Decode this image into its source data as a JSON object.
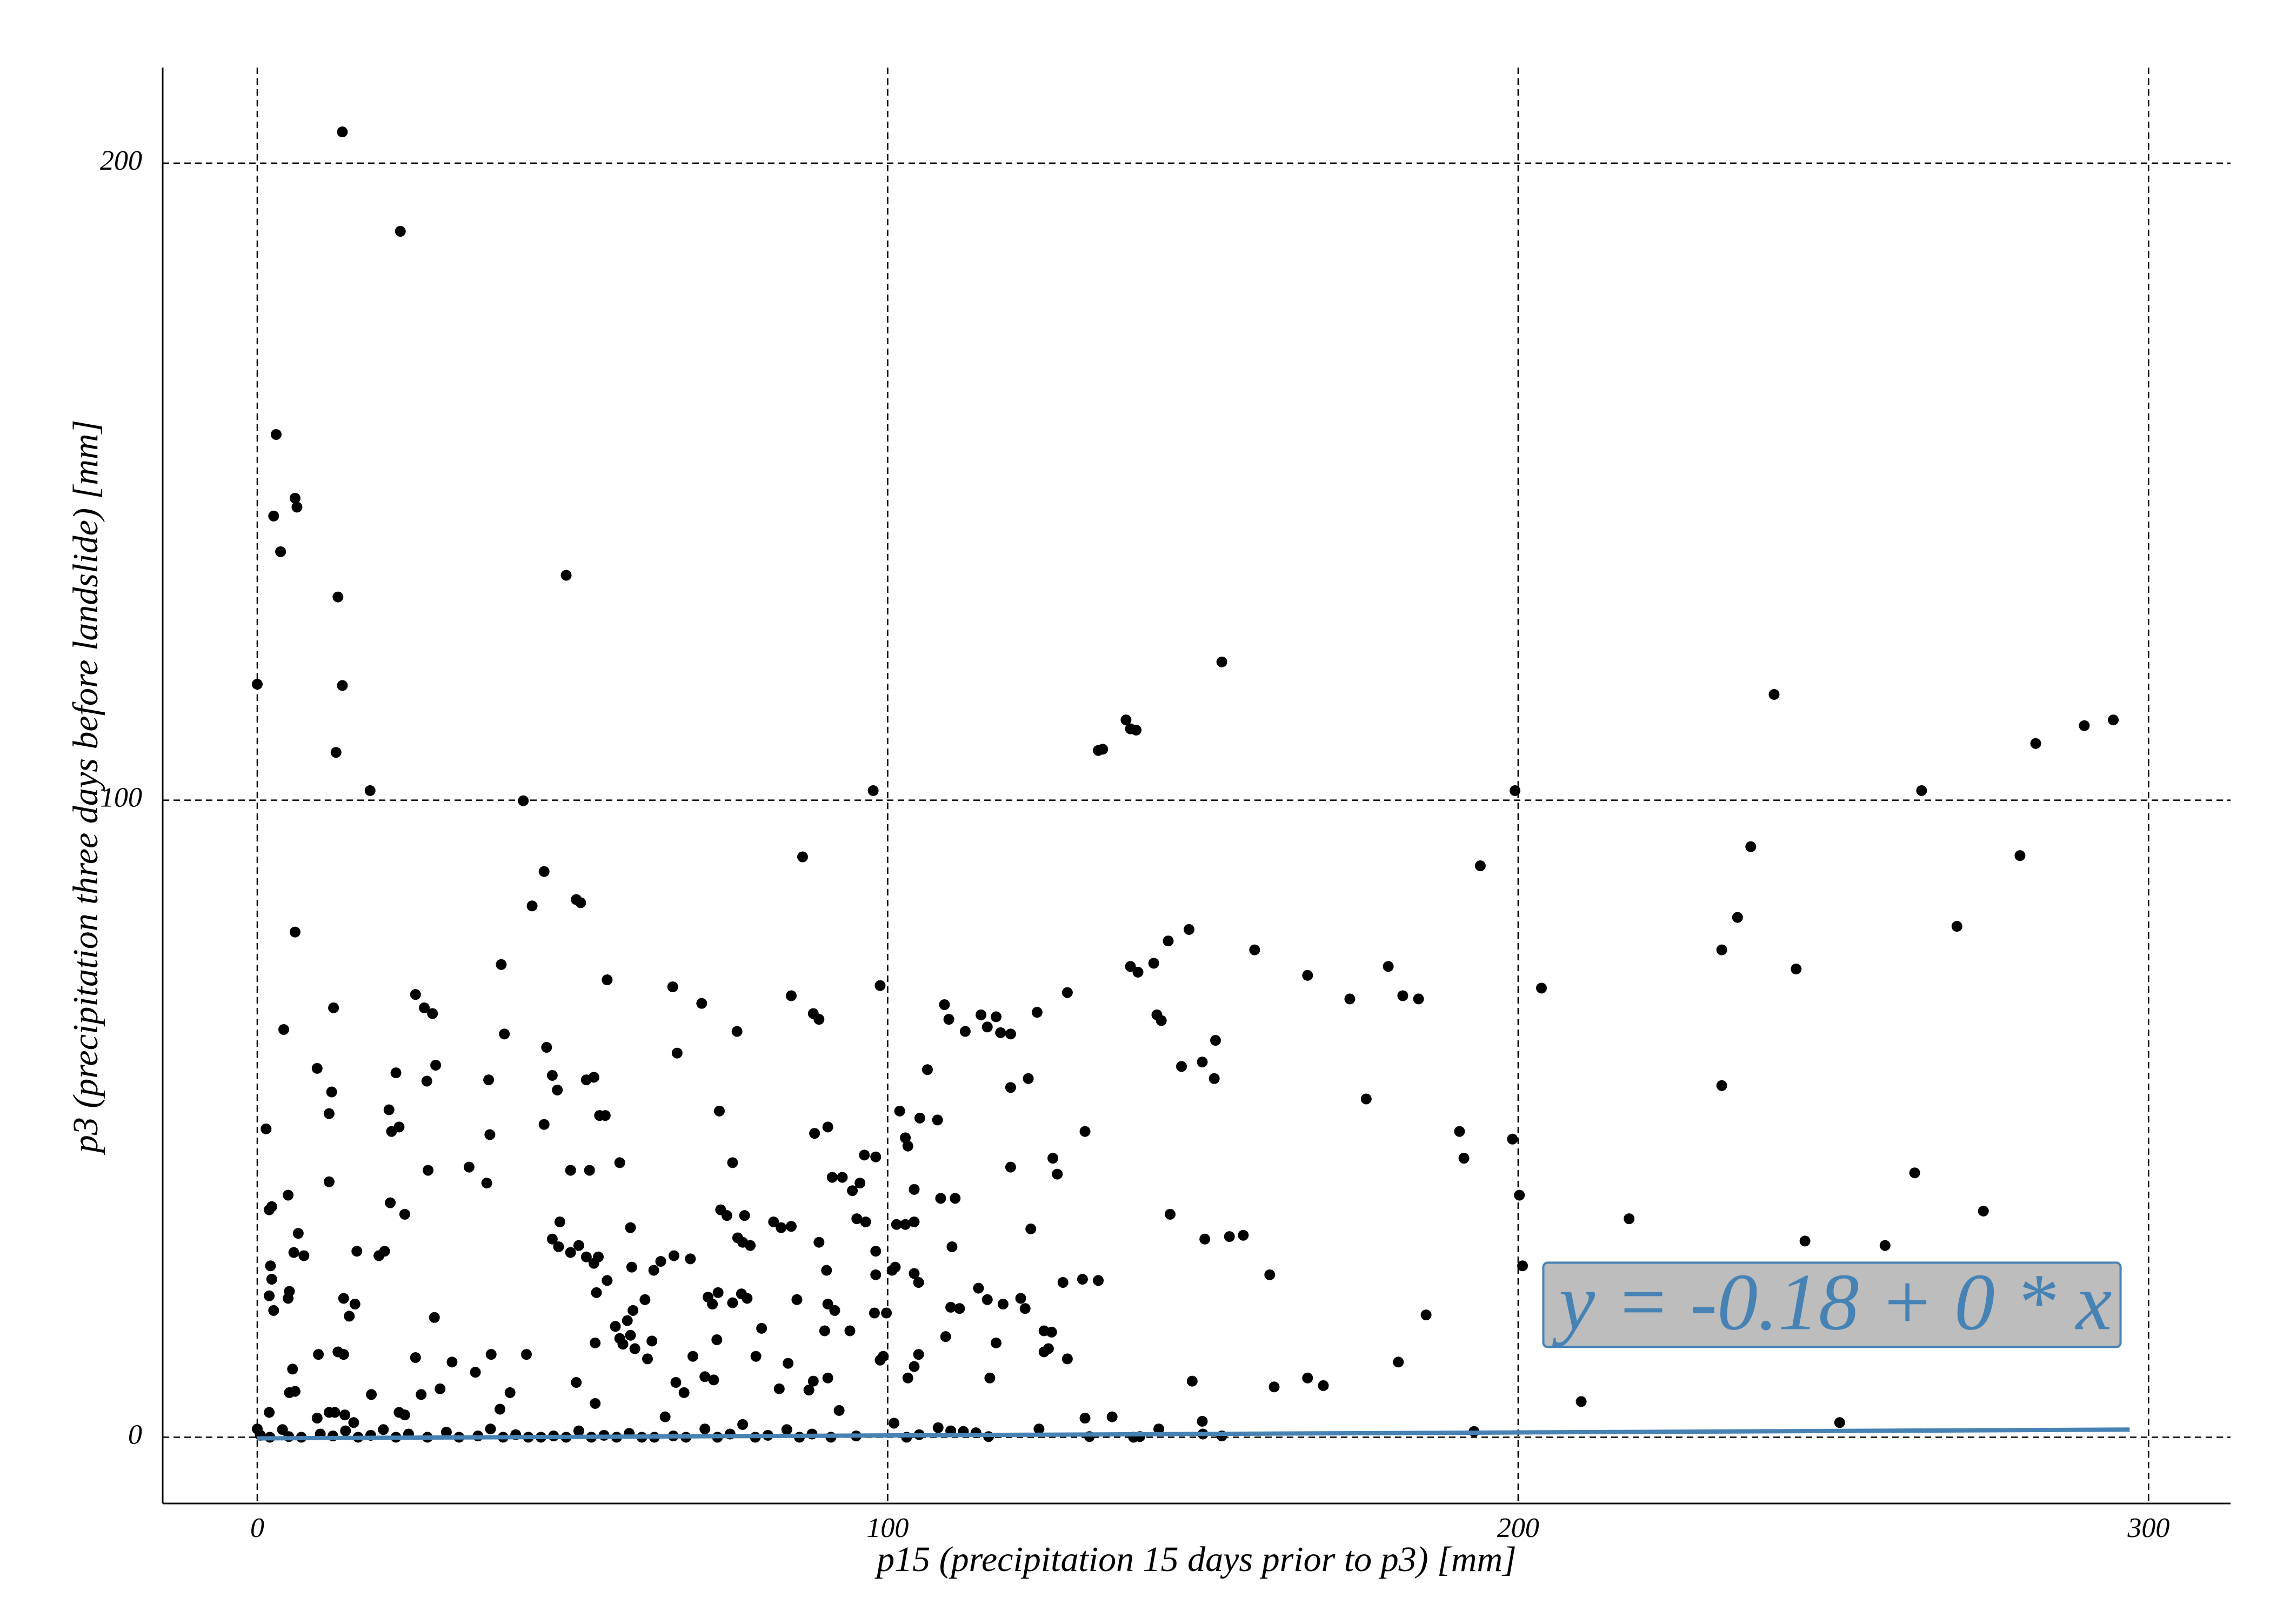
{
  "chart_data": {
    "type": "scatter",
    "xlabel": "p15 (precipitation 15 days prior to p3) [mm]",
    "ylabel": "p3 (precipitation three days before landslide) [mm]",
    "annotation": "y = -0.18 + 0 * x",
    "color": "#000000",
    "grid": true,
    "xlim": [
      -15,
      313
    ],
    "ylim": [
      -10.4,
      215
    ],
    "xticks": [
      0,
      100,
      200,
      300
    ],
    "yticks": [
      0,
      100,
      200
    ],
    "x": [
      13.5,
      22.7,
      3.0,
      2.6,
      6.0,
      6.3,
      3.7,
      49,
      12.8,
      0,
      13.5,
      153,
      240.6,
      294.4,
      289.8,
      137.8,
      138.5,
      139.4,
      282.1,
      133.4,
      134.1,
      12.5,
      17.9,
      97.7,
      199.5,
      264,
      42.2,
      86.5,
      236.9,
      279.6,
      194,
      45.5,
      43.6,
      50.6,
      51.3,
      234.8,
      269.6,
      147.8,
      6,
      144.5,
      232.3,
      158.2,
      142.2,
      38.7,
      138.5,
      139.7,
      244.1,
      166.6,
      55.5,
      179.4,
      98.8,
      65.9,
      203.7,
      25.1,
      173.3,
      181.7,
      184.2,
      84.7,
      128.5,
      70.5,
      12.1,
      26.5,
      27.8,
      109,
      109.7,
      114.8,
      117.2,
      115.8,
      117.9,
      112.3,
      119.5,
      88.2,
      89.1,
      123.7,
      142.7,
      143.4,
      4.2,
      39.2,
      76.1,
      45.9,
      66.6,
      106.3,
      9.5,
      22,
      28.3,
      146.6,
      149.9,
      152,
      151.8,
      52.2,
      53.4,
      46.8,
      47.6,
      26.9,
      11.8,
      36.7,
      232.3,
      119.5,
      122.3,
      175.9,
      101.9,
      11.4,
      20.9,
      54.3,
      55.2,
      73.3,
      105.1,
      107.9,
      45.5,
      1.4,
      131.3,
      190.7,
      90.5,
      88.4,
      21.3,
      22.5,
      36.9,
      102.8,
      103.2,
      199.1,
      96.3,
      98.1,
      75.4,
      126.2,
      191.4,
      49.7,
      52.7,
      57.5,
      27.1,
      33.6,
      119.5,
      126.9,
      262.9,
      11.4,
      91.2,
      92.8,
      95.6,
      94.4,
      36.4,
      4.9,
      200.2,
      104.2,
      110.7,
      108.4,
      1.9,
      2.3,
      21.1,
      23.4,
      144.8,
      217.6,
      273.8,
      73.5,
      74.5,
      48,
      77.3,
      102.8,
      101.4,
      104.2,
      81.9,
      83.1,
      84.7,
      6.5,
      59.2,
      122.7,
      156.4,
      154.2,
      150.3,
      76.2,
      77,
      78.2,
      245.5,
      46.8,
      89.1,
      110.2,
      5.8,
      7.4,
      258.2,
      15.8,
      19.3,
      20.2,
      98.1,
      64,
      68.7,
      2.1,
      90.3,
      160.6,
      13.7,
      5.1,
      4.9,
      1.9,
      121.1,
      130.9,
      133.4,
      127.8,
      121.8,
      200.7,
      185.4,
      109.2,
      12.8,
      13.7,
      124.8,
      125.5,
      181,
      117.2,
      128.5,
      116.2,
      148.3,
      169.1,
      161.3,
      210,
      131.3,
      135.6,
      149.9,
      251,
      193,
      95.1,
      96.5,
      49.7,
      52.2,
      54.1,
      53.4,
      47.8,
      51,
      66.1,
      101.2,
      100.7,
      104.2,
      104.9,
      59.4,
      55.5,
      62.9,
      98.1,
      2.3,
      73.1,
      71.5,
      72.2,
      53.8,
      85.6,
      61.5,
      76.8,
      75.4,
      77.7,
      110,
      111.4,
      114.4,
      115.8,
      118.3,
      90.5,
      91.6,
      15.5,
      14.6,
      28.1,
      2.6,
      59.6,
      58.7,
      97.9,
      99.8,
      56.8,
      124.8,
      126,
      94,
      90,
      80,
      57.5,
      59.2,
      53.6,
      62.6,
      59.9,
      58,
      72.9,
      104.9,
      9.7,
      79.1,
      42.7,
      99.3,
      98.8,
      84.2,
      5.6,
      6,
      5.1,
      25.1,
      30.9,
      69.1,
      61.9,
      34.6,
      71,
      72.4,
      104.2,
      37.1,
      166.6,
      18.1,
      40.1,
      66.4,
      67.7,
      88.2,
      87.5,
      90.5,
      103.2,
      82.8,
      29,
      26,
      50.6,
      1.9,
      11.4,
      13.9,
      12.3,
      15.3,
      22.5,
      23.4,
      38.5,
      53.6,
      64.7,
      92.3,
      9.5,
      0,
      0.5,
      2,
      4,
      5,
      7,
      10,
      12,
      14,
      16,
      18,
      20,
      22,
      24,
      27,
      30,
      32,
      35,
      37,
      39,
      41,
      43,
      45,
      47,
      49,
      51,
      53,
      55,
      57,
      59,
      61,
      63,
      66,
      68,
      71,
      73,
      75,
      77,
      79,
      81,
      84,
      86,
      88,
      91,
      95,
      101,
      103,
      105,
      108,
      110,
      112,
      114,
      116,
      124,
      132,
      139,
      140,
      143,
      150,
      153
    ],
    "values": [
      204.9,
      189.3,
      157.4,
      144.6,
      147.4,
      146,
      139,
      135.3,
      131.9,
      118.2,
      118,
      121.7,
      116.6,
      112.6,
      111.7,
      112.6,
      111.2,
      111,
      108.9,
      107.8,
      108,
      107.5,
      101.5,
      101.5,
      101.5,
      101.5,
      99.9,
      91.1,
      92.7,
      91.3,
      89.7,
      88.8,
      83.4,
      84.4,
      83.9,
      81.6,
      80.2,
      79.7,
      79.3,
      77.9,
      76.5,
      76.5,
      74.4,
      74.2,
      73.9,
      73,
      73.5,
      72.5,
      71.8,
      73.9,
      70.9,
      70.7,
      70.5,
      69.5,
      68.8,
      69.3,
      68.8,
      69.3,
      69.8,
      68.1,
      67.4,
      67.4,
      66.5,
      67.9,
      65.6,
      66.3,
      66,
      64.4,
      63.5,
      63.7,
      63.3,
      66.5,
      65.6,
      66.7,
      66.3,
      65.4,
      64,
      63.3,
      63.7,
      61.2,
      60.3,
      57.7,
      57.9,
      57.2,
      58.4,
      58.2,
      58.9,
      62.3,
      56.3,
      56.1,
      56.5,
      56.8,
      54.5,
      55.9,
      54.2,
      56.1,
      55.2,
      54.9,
      56.3,
      53.1,
      51.2,
      50.8,
      51.4,
      50.5,
      50.5,
      51.2,
      50.1,
      49.8,
      49.1,
      48.4,
      48,
      48,
      48.7,
      47.7,
      48,
      48.7,
      47.5,
      47,
      45.7,
      46.8,
      44.3,
      44,
      43.1,
      43.8,
      43.8,
      41.9,
      41.9,
      43.1,
      41.9,
      42.4,
      42.4,
      41.3,
      41.5,
      40.1,
      40.8,
      40.8,
      39.9,
      38.7,
      39.9,
      38,
      38,
      38.9,
      37.5,
      37.5,
      35.7,
      36.2,
      36.8,
      35,
      35,
      34.3,
      35.5,
      35.7,
      34.8,
      33.8,
      34.8,
      33.4,
      33.4,
      33.8,
      33.8,
      32.9,
      33.1,
      32,
      32.9,
      32.7,
      31.7,
      31.5,
      31.1,
      31.3,
      30.6,
      30.1,
      30.8,
      31.1,
      30.6,
      29.9,
      29,
      28.5,
      30.1,
      29.2,
      28.5,
      29.2,
      29.2,
      27.6,
      28,
      26.9,
      26.2,
      25.5,
      21.8,
      22.9,
      21.8,
      22.2,
      21.8,
      24.8,
      24.6,
      24.3,
      20.2,
      26.9,
      19.2,
      15.8,
      13.4,
      13,
      13.4,
      13.9,
      11.8,
      14.8,
      12.3,
      9.3,
      8.8,
      8.1,
      7.9,
      5.6,
      3,
      3.2,
      2.5,
      2.3,
      0.9,
      34.3,
      33.8,
      29,
      28.3,
      28.3,
      27.3,
      29.9,
      30.1,
      28.5,
      26.7,
      26.2,
      25.7,
      24.3,
      26.7,
      24.6,
      26.2,
      25.5,
      24.8,
      22.7,
      22,
      20.9,
      22.7,
      21.6,
      21.6,
      22.5,
      21.1,
      21.8,
      20.4,
      20.2,
      23.4,
      21.6,
      20.9,
      20.9,
      19.9,
      20.9,
      19,
      18.8,
      19.9,
      19.9,
      18.3,
      19.5,
      19.5,
      17.4,
      16.7,
      16.5,
      16.7,
      16.7,
      17.1,
      15.5,
      16,
      14.8,
      15.1,
      13.9,
      14.6,
      15.3,
      13,
      13,
      12.7,
      13,
      12.7,
      12.1,
      11.6,
      10.7,
      7.2,
      7,
      12.5,
      11.8,
      12.7,
      12.3,
      10.2,
      9.5,
      9,
      11.1,
      13,
      9.3,
      6.7,
      7,
      8.6,
      7,
      8.8,
      7.4,
      9.3,
      9.3,
      7.6,
      7.6,
      6.7,
      8.6,
      3.9,
      3.9,
      3.5,
      3.9,
      2.3,
      3.9,
      3.5,
      4.4,
      5.3,
      3.2,
      4.2,
      3,
      1.3,
      0.3,
      0,
      1.2,
      0.1,
      0,
      0.5,
      0.2,
      1,
      0,
      0.3,
      1.2,
      0,
      0.5,
      0,
      0.8,
      0,
      0.2,
      1.3,
      0,
      0.4,
      0,
      0,
      0.2,
      0,
      1,
      0,
      0.3,
      0,
      0.6,
      0,
      0,
      0.2,
      0,
      1.3,
      0,
      0.5,
      2,
      0,
      0.3,
      1.2,
      0,
      0.5,
      0,
      0.2,
      2.2,
      0,
      0.4,
      1.5,
      1,
      0.9,
      0.7,
      0.1,
      1.3,
      0.1,
      0,
      0.1,
      1.3,
      0.5,
      0.2
    ],
    "fit": {
      "color": "#4682b4",
      "x": [
        0,
        297
      ],
      "values": [
        -0.18,
        1.2
      ]
    }
  }
}
